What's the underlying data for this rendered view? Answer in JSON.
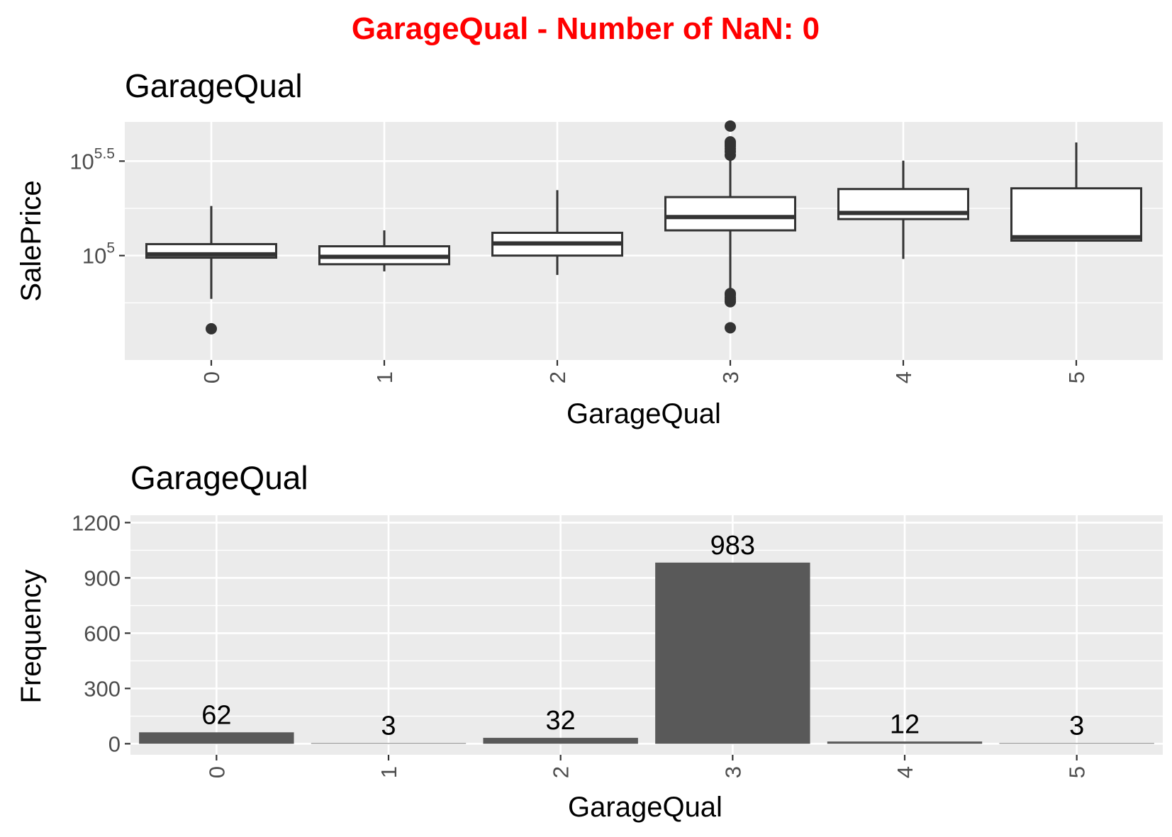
{
  "figure_title": "GarageQual - Number of NaN: 0",
  "colors": {
    "title": "#ff0000",
    "panel": "#ebebeb",
    "grid": "#ffffff",
    "bar": "#595959",
    "box_line": "#333333",
    "box_fill": "#ffffff"
  },
  "chart_data": [
    {
      "type": "box",
      "title": "GarageQual",
      "xlabel": "GarageQual",
      "ylabel": "SalePrice",
      "y_scale": "log10",
      "categories": [
        "0",
        "1",
        "2",
        "3",
        "4",
        "5"
      ],
      "y_ticks": [
        {
          "base": "10",
          "exp": "5",
          "value": 100000
        },
        {
          "base": "10",
          "exp": "5.5",
          "value": 316228
        }
      ],
      "ylim": [
        28000,
        510000
      ],
      "grid": true,
      "boxes": [
        {
          "category": "0",
          "whisker_low": 59000,
          "q1": 97500,
          "median": 101500,
          "q3": 115000,
          "whisker_high": 183000,
          "outliers": [
            41000
          ]
        },
        {
          "category": "1",
          "whisker_low": 82500,
          "q1": 90000,
          "median": 98500,
          "q3": 112000,
          "whisker_high": 136000,
          "outliers": []
        },
        {
          "category": "2",
          "whisker_low": 79000,
          "q1": 100000,
          "median": 116000,
          "q3": 132000,
          "whisker_high": 222000,
          "outliers": []
        },
        {
          "category": "3",
          "whisker_low": 66000,
          "q1": 136000,
          "median": 160000,
          "q3": 204000,
          "whisker_high": 330000,
          "outliers": [
            41500,
            57000,
            58500,
            60000,
            62000,
            63000,
            340000,
            355000,
            368000,
            380000,
            390000,
            400000,
            485000
          ]
        },
        {
          "category": "4",
          "whisker_low": 96000,
          "q1": 156000,
          "median": 168000,
          "q3": 225000,
          "whisker_high": 318000,
          "outliers": []
        },
        {
          "category": "5",
          "whisker_low": 120000,
          "q1": 120000,
          "median": 125000,
          "q3": 227000,
          "whisker_high": 397000,
          "outliers": []
        }
      ]
    },
    {
      "type": "bar",
      "title": "GarageQual",
      "xlabel": "GarageQual",
      "ylabel": "Frequency",
      "categories": [
        "0",
        "1",
        "2",
        "3",
        "4",
        "5"
      ],
      "values": [
        62,
        3,
        32,
        983,
        12,
        3
      ],
      "data_labels": [
        "62",
        "3",
        "32",
        "983",
        "12",
        "3"
      ],
      "y_ticks": [
        "0",
        "300",
        "600",
        "900",
        "1200"
      ],
      "ylim": [
        -60,
        1240
      ],
      "grid": true
    }
  ]
}
